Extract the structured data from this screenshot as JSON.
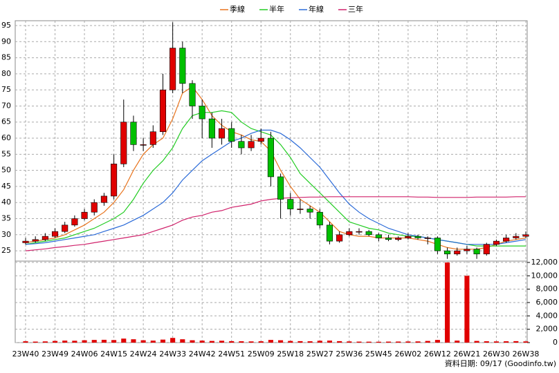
{
  "chart_data": {
    "type": "candlestick",
    "categories": [
      "23W40",
      null,
      null,
      "23W49",
      null,
      null,
      "24W06",
      null,
      null,
      "24W15",
      null,
      null,
      "24W24",
      null,
      null,
      "24W33",
      null,
      null,
      "24W42",
      null,
      null,
      "24W51",
      null,
      null,
      "25W09",
      null,
      null,
      "25W18",
      null,
      null,
      "25W27",
      null,
      null,
      "25W36",
      null,
      null,
      "25W45",
      null,
      null,
      "26W02",
      null,
      null,
      "26W12",
      null,
      null,
      "26W21",
      null,
      null,
      "26W30",
      null,
      null,
      "26W38"
    ],
    "candles": {
      "open": [
        27.5,
        28,
        28.5,
        29.5,
        31,
        33,
        35,
        37,
        40,
        42,
        52,
        65,
        58,
        58,
        62,
        75,
        88,
        77,
        70,
        66,
        60,
        63,
        59,
        57,
        59,
        60,
        48,
        41,
        38,
        38,
        37,
        33,
        28,
        30,
        31,
        31,
        30,
        29,
        28.5,
        29,
        29.5,
        29,
        29,
        25,
        24,
        25,
        25.5,
        24,
        27,
        28,
        29,
        29.5
      ],
      "high": [
        29,
        29.5,
        30.5,
        32,
        34,
        36,
        38,
        41,
        43,
        55,
        72,
        67,
        60,
        64,
        80,
        96,
        90,
        78,
        72,
        68,
        66,
        65,
        61,
        61,
        63,
        62,
        49,
        43,
        41,
        39,
        38,
        34,
        31,
        32,
        32,
        31.5,
        30.5,
        30,
        29.5,
        30.5,
        30,
        29.5,
        29.5,
        26,
        26,
        26.5,
        26,
        27.5,
        28.5,
        30,
        30.5,
        31
      ],
      "low": [
        27,
        27.5,
        28,
        29,
        30.5,
        32.5,
        34.5,
        36,
        39,
        41,
        51,
        56,
        56,
        57,
        61,
        74,
        74,
        66,
        60,
        57,
        58,
        57,
        55,
        56,
        58,
        45,
        35,
        36,
        36.5,
        35,
        32,
        27,
        27.5,
        29.5,
        30,
        29.5,
        28,
        28,
        28,
        28.5,
        28.5,
        27,
        24,
        22.5,
        23.5,
        24,
        22.5,
        23.5,
        26.5,
        27.5,
        28.5,
        29
      ],
      "close": [
        28,
        28.5,
        29.5,
        31,
        33,
        35,
        37,
        40,
        42,
        52,
        65,
        58,
        58,
        62,
        75,
        88,
        77,
        70,
        66,
        60,
        63,
        59,
        57,
        59,
        60,
        48,
        41,
        38,
        38,
        37,
        33,
        28,
        30,
        31,
        31,
        30,
        29,
        28.5,
        29,
        29.5,
        29,
        29,
        25,
        24,
        25,
        25.5,
        24,
        27,
        28,
        29,
        29.5,
        30
      ],
      "up_color": "#e00000",
      "down_color": "#00c000"
    },
    "series": [
      {
        "name": "季線",
        "color": "#e8731c",
        "values": [
          27.5,
          28,
          28.5,
          29,
          30,
          31.5,
          33,
          35,
          37,
          40,
          44,
          50,
          55,
          58,
          60,
          66,
          74,
          76,
          72,
          67,
          64,
          62,
          61,
          59.5,
          59,
          56,
          50,
          45,
          41,
          39,
          37,
          34,
          31,
          30,
          29.5,
          29.5,
          29,
          29,
          29,
          29,
          28.5,
          28,
          27,
          26,
          25.5,
          25.5,
          25.5,
          26,
          27,
          28,
          28.5,
          29
        ]
      },
      {
        "name": "半年",
        "color": "#22cc22",
        "values": [
          27,
          27.5,
          28,
          28.5,
          29,
          30,
          31,
          32,
          33.5,
          35,
          37,
          41,
          46,
          50,
          53,
          57,
          63,
          67,
          68,
          68,
          68.5,
          68,
          65,
          63,
          62,
          61,
          58,
          54,
          49,
          46,
          43,
          40,
          37,
          34,
          33,
          32,
          31.5,
          30.5,
          30,
          29.5,
          29.5,
          29,
          28.5,
          28,
          27.5,
          27,
          26.5,
          26.5,
          26.5,
          26.5,
          26.5,
          26.5
        ]
      },
      {
        "name": "年線",
        "color": "#2a6ad8",
        "values": [
          27,
          27.2,
          27.5,
          28,
          28.5,
          29,
          29.5,
          30,
          31,
          32,
          33,
          34.5,
          36,
          38,
          40,
          43,
          47,
          50,
          53,
          55,
          57,
          59,
          60,
          61.5,
          62.5,
          62.5,
          61.5,
          59.5,
          57,
          54,
          51,
          47,
          43,
          39.5,
          37,
          35,
          33.5,
          32,
          31,
          30,
          29.5,
          29,
          28.5,
          28,
          27.5,
          27,
          27,
          27,
          27,
          27.5,
          28,
          28.5
        ]
      },
      {
        "name": "三年",
        "color": "#d0206a",
        "values": [
          25,
          25.3,
          25.6,
          26,
          26.3,
          26.7,
          27,
          27.5,
          28,
          28.5,
          29,
          29.5,
          30,
          31,
          32,
          33,
          34.5,
          35.5,
          36,
          37,
          37.5,
          38.5,
          39,
          39.5,
          40.5,
          41,
          41.3,
          41.5,
          41.6,
          41.7,
          41.7,
          41.8,
          41.8,
          41.8,
          41.8,
          41.8,
          41.8,
          41.8,
          41.8,
          41.8,
          41.7,
          41.7,
          41.6,
          41.6,
          41.6,
          41.6,
          41.7,
          41.7,
          41.7,
          41.7,
          41.8,
          41.8
        ]
      }
    ],
    "ylim": [
      21.8,
      96.5
    ],
    "yticks": [
      25,
      30,
      35,
      40,
      45,
      50,
      55,
      60,
      65,
      70,
      75,
      80,
      85,
      90,
      95
    ],
    "volume": {
      "values": [
        200,
        150,
        180,
        250,
        300,
        280,
        350,
        400,
        420,
        380,
        600,
        500,
        350,
        300,
        450,
        700,
        500,
        350,
        300,
        250,
        280,
        220,
        200,
        180,
        200,
        400,
        350,
        250,
        220,
        200,
        280,
        300,
        220,
        180,
        150,
        140,
        130,
        150,
        160,
        170,
        180,
        250,
        400,
        12000,
        300,
        10000,
        250,
        200,
        180,
        200,
        220,
        180
      ],
      "color": "#e00000"
    },
    "y2lim": [
      0,
      12200
    ],
    "y2ticks": [
      0,
      {
        "value": 2000,
        "label": "2,000"
      },
      {
        "value": 4000,
        "label": "4,000"
      },
      {
        "value": 6000,
        "label": "6,000"
      },
      {
        "value": 8000,
        "label": "8,000"
      },
      {
        "value": 10000,
        "label": "10,000"
      },
      {
        "value": 12000,
        "label": "12,000"
      }
    ],
    "grid": true,
    "footnote": "資料日期: 09/17  (Goodinfo.tw)"
  }
}
